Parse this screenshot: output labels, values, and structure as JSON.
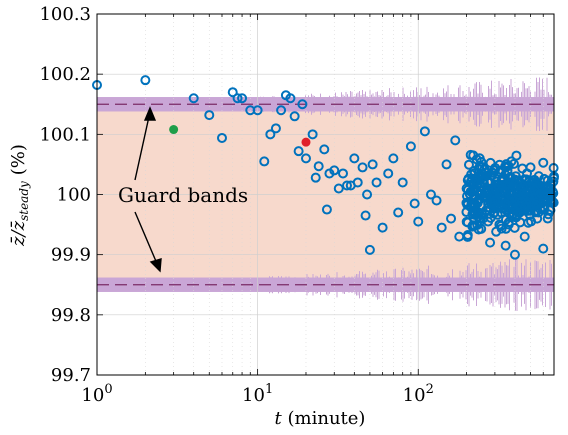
{
  "chart_data": {
    "type": "scatter",
    "x_scale": "log",
    "xlim": [
      1,
      700
    ],
    "ylim": [
      99.7,
      100.3
    ],
    "x_ticks": [
      {
        "value": 1,
        "base": "10",
        "exp": "0"
      },
      {
        "value": 10,
        "base": "10",
        "exp": "1"
      },
      {
        "value": 100,
        "base": "10",
        "exp": "2"
      }
    ],
    "y_ticks": [
      {
        "value": 99.7,
        "label": "99.7"
      },
      {
        "value": 99.8,
        "label": "99.8"
      },
      {
        "value": 99.9,
        "label": "99.9"
      },
      {
        "value": 100.0,
        "label": "100"
      },
      {
        "value": 100.1,
        "label": "100.1"
      },
      {
        "value": 100.2,
        "label": "100.2"
      },
      {
        "value": 100.3,
        "label": "100.3"
      }
    ],
    "xlabel_var": "t",
    "xlabel_unit": " (minute)",
    "ylabel_main": "z̄/z̄",
    "ylabel_sub": "steady",
    "ylabel_unit": "(%)",
    "grid": true,
    "guard_lines": [
      100.15,
      99.85
    ],
    "annotation": "Guard bands",
    "colors": {
      "marker": "#0072bd",
      "highlight_green": "#1e9e4a",
      "highlight_red": "#e0202a",
      "band_light": "#f7d9cc",
      "band_purple": "#c9a6d6",
      "dashed_line": "#7b2b66"
    },
    "series": [
      {
        "marker": "open-circle",
        "points": [
          [
            1.0,
            100.182
          ],
          [
            2.0,
            100.19
          ],
          [
            4.0,
            100.16
          ],
          [
            5.0,
            100.132
          ],
          [
            6.0,
            100.094
          ],
          [
            7.0,
            100.17
          ],
          [
            7.5,
            100.16
          ],
          [
            8.0,
            100.16
          ],
          [
            9.0,
            100.14
          ],
          [
            10.0,
            100.14
          ],
          [
            11.0,
            100.055
          ],
          [
            12.0,
            100.1
          ],
          [
            13.0,
            100.11
          ],
          [
            14.0,
            100.14
          ],
          [
            15.0,
            100.165
          ],
          [
            16.0,
            100.16
          ],
          [
            17.0,
            100.13
          ],
          [
            18.0,
            100.072
          ],
          [
            19.0,
            100.15
          ],
          [
            20.0,
            100.06
          ],
          [
            22.0,
            100.1
          ],
          [
            23.0,
            100.028
          ],
          [
            24.0,
            100.047
          ],
          [
            26.0,
            100.075
          ],
          [
            27.0,
            99.975
          ],
          [
            28.0,
            100.035
          ],
          [
            30.0,
            100.04
          ],
          [
            32.0,
            100.01
          ],
          [
            34.0,
            100.035
          ],
          [
            36.0,
            100.015
          ],
          [
            38.0,
            100.015
          ],
          [
            40.0,
            100.06
          ],
          [
            42.0,
            100.02
          ],
          [
            45.0,
            100.045
          ],
          [
            47.0,
            99.965
          ],
          [
            48.0,
            100.0
          ],
          [
            50.0,
            99.908
          ],
          [
            52.0,
            100.05
          ],
          [
            55.0,
            100.02
          ],
          [
            60.0,
            99.945
          ],
          [
            65.0,
            100.035
          ],
          [
            70.0,
            100.06
          ],
          [
            75.0,
            99.97
          ],
          [
            80.0,
            100.02
          ],
          [
            90.0,
            100.08
          ],
          [
            95.0,
            99.985
          ],
          [
            100.0,
            99.955
          ],
          [
            110.0,
            100.105
          ],
          [
            120.0,
            100.0
          ],
          [
            130.0,
            99.99
          ],
          [
            140.0,
            99.945
          ],
          [
            150.0,
            100.05
          ],
          [
            160.0,
            99.96
          ],
          [
            170.0,
            100.09
          ],
          [
            180.0,
            99.93
          ],
          [
            200.0,
            100.01
          ],
          [
            220.0,
            100.065
          ],
          [
            240.0,
            99.96
          ],
          [
            260.0,
            100.03
          ],
          [
            280.0,
            99.92
          ],
          [
            300.0,
            100.04
          ],
          [
            320.0,
            99.95
          ],
          [
            350.0,
            99.915
          ],
          [
            380.0,
            100.055
          ],
          [
            400.0,
            99.9
          ],
          [
            430.0,
            100.02
          ],
          [
            460.0,
            99.93
          ],
          [
            500.0,
            100.045
          ],
          [
            550.0,
            99.96
          ],
          [
            600.0,
            99.91
          ],
          [
            650.0,
            100.0
          ],
          [
            700.0,
            100.03
          ]
        ]
      },
      {
        "marker": "filled-circle",
        "color": "#1e9e4a",
        "points": [
          [
            3.0,
            100.108
          ]
        ]
      },
      {
        "marker": "filled-circle",
        "color": "#e0202a",
        "points": [
          [
            20.0,
            100.087
          ]
        ]
      }
    ]
  }
}
